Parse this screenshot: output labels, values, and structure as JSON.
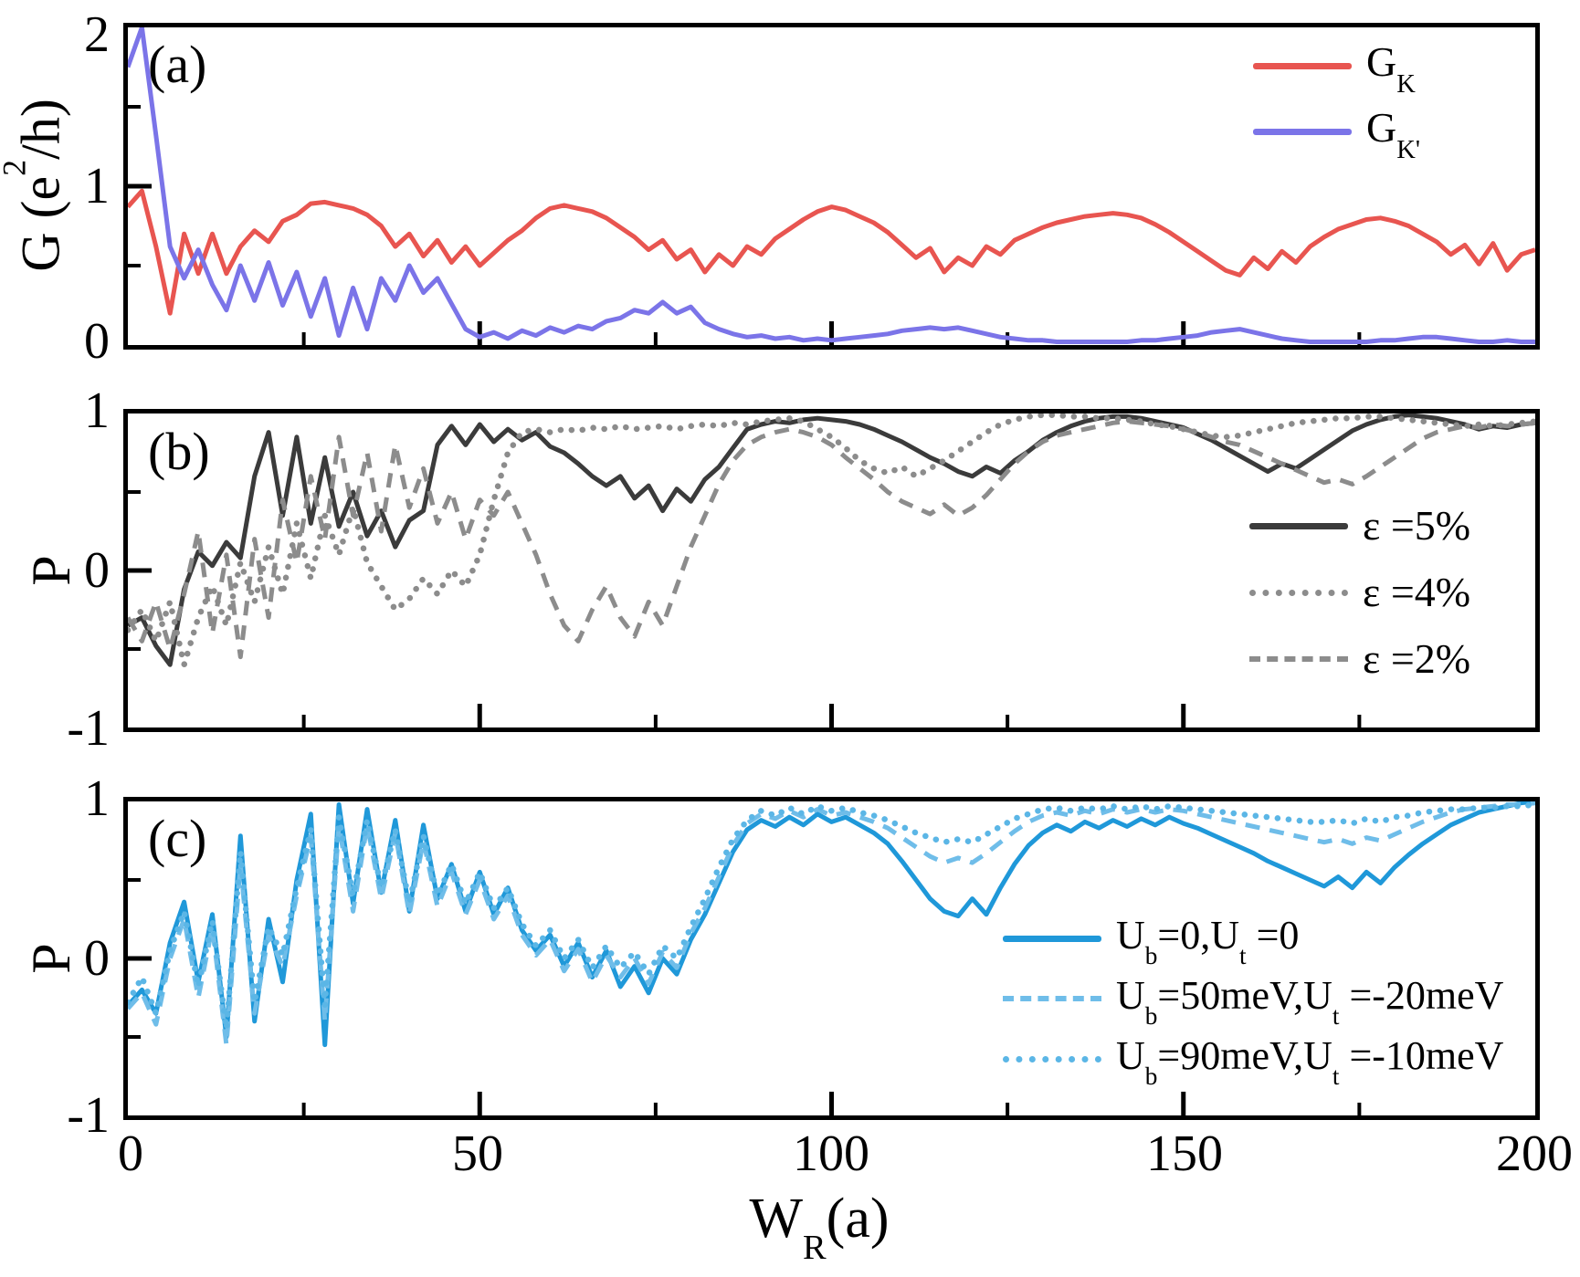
{
  "figure": {
    "panel_a": {
      "tag": "(a)",
      "ylabel": {
        "prefix": "G (e",
        "sup": "2",
        "suffix": "/h)"
      },
      "yticks": [
        "2",
        "1",
        "0"
      ],
      "legend": [
        {
          "base": "G",
          "sub": "K"
        },
        {
          "base": "G",
          "sub": "K'"
        }
      ]
    },
    "panel_b": {
      "tag": "(b)",
      "ylabel": "P",
      "yticks": [
        "1",
        "0",
        "-1"
      ],
      "legend": [
        {
          "label": "ε =5%"
        },
        {
          "label": "ε =4%"
        },
        {
          "label": "ε =2%"
        }
      ]
    },
    "panel_c": {
      "tag": "(c)",
      "ylabel": "P",
      "yticks": [
        "1",
        "0",
        "-1"
      ],
      "legend": [
        {
          "p1": "U",
          "p1sub": "b",
          "p2": "=0,U",
          "p2sub": "t",
          "p3": " =0"
        },
        {
          "p1": "U",
          "p1sub": "b",
          "p2": "=50meV,U",
          "p2sub": "t",
          "p3": " =-20meV"
        },
        {
          "p1": "U",
          "p1sub": "b",
          "p2": "=90meV,U",
          "p2sub": "t",
          "p3": " =-10meV"
        }
      ]
    },
    "xticks": [
      "0",
      "50",
      "100",
      "150",
      "200"
    ],
    "xlabel": {
      "base": "W",
      "sub": "R",
      "suffix": "(a)"
    }
  },
  "colors": {
    "gk_red": "#e85550",
    "gkp_blue": "#7b74e8",
    "eps5_dark": "#3b3b3b",
    "eps_gray": "#8c8c8c",
    "ub0_blue": "#1f98d9",
    "ub50_lightblue": "#6fbde9",
    "ub90_lightblue": "#5bb6e6",
    "frame": "#000000"
  },
  "chart_data": [
    {
      "type": "line",
      "panel": "a",
      "xlabel": "W_R(a)",
      "ylabel": "G (e^2/h)",
      "xlim": [
        0,
        200
      ],
      "ylim": [
        0,
        2
      ],
      "grid": false,
      "legend_position": "top-right",
      "x_start": 0,
      "x_step": 2,
      "x_ticks_major": [
        50,
        100,
        150
      ],
      "x_ticks_minor": [
        25,
        75,
        125,
        175
      ],
      "y_ticks_major": [
        1
      ],
      "y_ticks_minor": [
        0.5,
        1.5
      ],
      "series": [
        {
          "name": "G_K",
          "color": "#e85550",
          "style": "solid",
          "values": [
            0.87,
            0.97,
            0.62,
            0.2,
            0.7,
            0.45,
            0.7,
            0.45,
            0.62,
            0.72,
            0.65,
            0.78,
            0.82,
            0.89,
            0.9,
            0.88,
            0.86,
            0.82,
            0.75,
            0.62,
            0.7,
            0.56,
            0.66,
            0.52,
            0.62,
            0.5,
            0.58,
            0.66,
            0.72,
            0.8,
            0.86,
            0.88,
            0.86,
            0.84,
            0.8,
            0.74,
            0.68,
            0.6,
            0.66,
            0.54,
            0.6,
            0.46,
            0.57,
            0.5,
            0.62,
            0.57,
            0.67,
            0.73,
            0.79,
            0.84,
            0.87,
            0.85,
            0.81,
            0.77,
            0.71,
            0.63,
            0.55,
            0.61,
            0.46,
            0.55,
            0.5,
            0.62,
            0.57,
            0.66,
            0.7,
            0.74,
            0.77,
            0.79,
            0.81,
            0.82,
            0.83,
            0.82,
            0.8,
            0.76,
            0.71,
            0.65,
            0.59,
            0.53,
            0.47,
            0.44,
            0.55,
            0.48,
            0.59,
            0.52,
            0.62,
            0.68,
            0.73,
            0.76,
            0.79,
            0.8,
            0.78,
            0.75,
            0.7,
            0.65,
            0.57,
            0.63,
            0.51,
            0.64,
            0.47,
            0.57,
            0.6
          ]
        },
        {
          "name": "G_K'",
          "color": "#7b74e8",
          "style": "solid",
          "values": [
            1.75,
            2.0,
            1.32,
            0.62,
            0.42,
            0.6,
            0.38,
            0.22,
            0.5,
            0.28,
            0.52,
            0.25,
            0.46,
            0.18,
            0.42,
            0.06,
            0.36,
            0.1,
            0.42,
            0.28,
            0.5,
            0.33,
            0.42,
            0.26,
            0.1,
            0.05,
            0.08,
            0.04,
            0.09,
            0.06,
            0.11,
            0.08,
            0.12,
            0.1,
            0.15,
            0.17,
            0.22,
            0.2,
            0.27,
            0.2,
            0.24,
            0.14,
            0.1,
            0.07,
            0.05,
            0.06,
            0.04,
            0.05,
            0.03,
            0.04,
            0.03,
            0.04,
            0.05,
            0.06,
            0.07,
            0.09,
            0.1,
            0.11,
            0.1,
            0.11,
            0.09,
            0.07,
            0.05,
            0.04,
            0.03,
            0.03,
            0.02,
            0.02,
            0.02,
            0.02,
            0.02,
            0.02,
            0.03,
            0.03,
            0.04,
            0.05,
            0.06,
            0.08,
            0.09,
            0.1,
            0.08,
            0.06,
            0.04,
            0.03,
            0.02,
            0.02,
            0.02,
            0.02,
            0.02,
            0.03,
            0.03,
            0.04,
            0.05,
            0.05,
            0.04,
            0.03,
            0.02,
            0.02,
            0.03,
            0.02,
            0.02
          ]
        }
      ]
    },
    {
      "type": "line",
      "panel": "b",
      "xlabel": "W_R(a)",
      "ylabel": "P",
      "xlim": [
        0,
        200
      ],
      "ylim": [
        -1,
        1
      ],
      "grid": false,
      "legend_position": "right",
      "x_start": 0,
      "x_step": 2,
      "x_ticks_major": [
        50,
        100,
        150
      ],
      "x_ticks_minor": [
        25,
        75,
        125,
        175
      ],
      "y_ticks_major": [
        0
      ],
      "y_ticks_minor": [
        -0.5,
        0.5
      ],
      "series": [
        {
          "name": "ε =5%",
          "color": "#3b3b3b",
          "style": "solid",
          "values": [
            -0.35,
            -0.3,
            -0.48,
            -0.6,
            -0.12,
            0.12,
            0.03,
            0.18,
            0.08,
            0.6,
            0.88,
            0.35,
            0.85,
            0.3,
            0.72,
            0.28,
            0.5,
            0.22,
            0.38,
            0.15,
            0.32,
            0.38,
            0.8,
            0.92,
            0.8,
            0.93,
            0.82,
            0.9,
            0.83,
            0.88,
            0.79,
            0.75,
            0.68,
            0.6,
            0.54,
            0.6,
            0.46,
            0.54,
            0.38,
            0.52,
            0.44,
            0.58,
            0.66,
            0.78,
            0.9,
            0.93,
            0.95,
            0.94,
            0.96,
            0.97,
            0.96,
            0.95,
            0.93,
            0.9,
            0.86,
            0.82,
            0.77,
            0.72,
            0.68,
            0.63,
            0.6,
            0.66,
            0.62,
            0.7,
            0.76,
            0.83,
            0.88,
            0.92,
            0.95,
            0.97,
            0.98,
            0.98,
            0.97,
            0.95,
            0.93,
            0.91,
            0.87,
            0.83,
            0.78,
            0.73,
            0.68,
            0.63,
            0.68,
            0.65,
            0.71,
            0.77,
            0.83,
            0.89,
            0.93,
            0.96,
            0.98,
            0.99,
            0.98,
            0.97,
            0.95,
            0.93,
            0.9,
            0.92,
            0.91,
            0.93,
            0.94
          ]
        },
        {
          "name": "ε =4%",
          "color": "#8c8c8c",
          "style": "dotted",
          "values": [
            -0.38,
            -0.25,
            -0.45,
            -0.2,
            -0.6,
            -0.3,
            -0.1,
            -0.35,
            0.05,
            -0.2,
            0.15,
            -0.15,
            0.3,
            -0.05,
            0.35,
            0.1,
            0.4,
            0.05,
            -0.1,
            -0.25,
            -0.18,
            -0.05,
            -0.15,
            0.0,
            -0.1,
            0.1,
            0.45,
            0.75,
            0.88,
            0.9,
            0.88,
            0.9,
            0.89,
            0.91,
            0.9,
            0.92,
            0.9,
            0.91,
            0.92,
            0.9,
            0.92,
            0.93,
            0.92,
            0.94,
            0.93,
            0.95,
            0.96,
            0.97,
            0.95,
            0.9,
            0.85,
            0.78,
            0.7,
            0.65,
            0.62,
            0.66,
            0.6,
            0.65,
            0.7,
            0.76,
            0.82,
            0.88,
            0.93,
            0.96,
            0.98,
            0.99,
            0.99,
            0.98,
            0.98,
            0.97,
            0.97,
            0.96,
            0.95,
            0.93,
            0.92,
            0.9,
            0.88,
            0.86,
            0.85,
            0.86,
            0.88,
            0.9,
            0.92,
            0.94,
            0.95,
            0.96,
            0.97,
            0.97,
            0.98,
            0.98,
            0.97,
            0.96,
            0.95,
            0.94,
            0.93,
            0.92,
            0.93,
            0.92,
            0.93,
            0.94,
            0.95
          ]
        },
        {
          "name": "ε =2%",
          "color": "#8c8c8c",
          "style": "dashed",
          "values": [
            -0.3,
            -0.45,
            -0.2,
            -0.5,
            -0.15,
            0.25,
            -0.4,
            0.1,
            -0.55,
            0.2,
            -0.3,
            0.45,
            0.05,
            0.6,
            0.2,
            0.85,
            0.35,
            0.75,
            0.25,
            0.8,
            0.4,
            0.65,
            0.3,
            0.5,
            0.2,
            0.45,
            0.35,
            0.5,
            0.3,
            0.1,
            -0.15,
            -0.35,
            -0.45,
            -0.25,
            -0.1,
            -0.3,
            -0.42,
            -0.2,
            -0.35,
            -0.1,
            0.15,
            0.35,
            0.55,
            0.7,
            0.8,
            0.85,
            0.88,
            0.9,
            0.88,
            0.85,
            0.8,
            0.72,
            0.65,
            0.58,
            0.5,
            0.44,
            0.4,
            0.36,
            0.42,
            0.35,
            0.4,
            0.48,
            0.58,
            0.68,
            0.76,
            0.82,
            0.86,
            0.88,
            0.9,
            0.92,
            0.94,
            0.95,
            0.94,
            0.93,
            0.92,
            0.9,
            0.88,
            0.85,
            0.82,
            0.8,
            0.76,
            0.72,
            0.68,
            0.64,
            0.6,
            0.56,
            0.58,
            0.55,
            0.6,
            0.66,
            0.72,
            0.78,
            0.84,
            0.88,
            0.9,
            0.92,
            0.91,
            0.93,
            0.92,
            0.93,
            0.94
          ]
        }
      ]
    },
    {
      "type": "line",
      "panel": "c",
      "xlabel": "W_R(a)",
      "ylabel": "P",
      "xlim": [
        0,
        200
      ],
      "ylim": [
        -1,
        1
      ],
      "grid": false,
      "legend_position": "bottom-right",
      "x_start": 0,
      "x_step": 2,
      "x_ticks_major": [
        50,
        100,
        150
      ],
      "x_ticks_minor": [
        25,
        75,
        125,
        175
      ],
      "y_ticks_major": [
        0
      ],
      "y_ticks_minor": [
        -0.5,
        0.5
      ],
      "series": [
        {
          "name": "U_b=0,U_t=0",
          "color": "#1f98d9",
          "style": "solid",
          "values": [
            -0.3,
            -0.2,
            -0.35,
            0.1,
            0.36,
            -0.15,
            0.28,
            -0.5,
            0.78,
            -0.4,
            0.25,
            -0.15,
            0.5,
            0.92,
            -0.55,
            0.98,
            0.35,
            0.95,
            0.42,
            0.88,
            0.3,
            0.85,
            0.38,
            0.6,
            0.3,
            0.55,
            0.28,
            0.45,
            0.18,
            0.05,
            0.15,
            -0.05,
            0.1,
            -0.12,
            0.05,
            -0.18,
            -0.05,
            -0.22,
            0.0,
            -0.1,
            0.12,
            0.28,
            0.48,
            0.68,
            0.82,
            0.88,
            0.84,
            0.9,
            0.85,
            0.92,
            0.87,
            0.9,
            0.85,
            0.8,
            0.73,
            0.62,
            0.5,
            0.38,
            0.3,
            0.27,
            0.38,
            0.28,
            0.45,
            0.6,
            0.72,
            0.8,
            0.85,
            0.81,
            0.87,
            0.83,
            0.88,
            0.84,
            0.89,
            0.85,
            0.9,
            0.86,
            0.83,
            0.79,
            0.75,
            0.71,
            0.67,
            0.62,
            0.58,
            0.54,
            0.5,
            0.46,
            0.52,
            0.45,
            0.55,
            0.48,
            0.58,
            0.66,
            0.73,
            0.79,
            0.85,
            0.89,
            0.93,
            0.95,
            0.97,
            0.99,
            1.0
          ]
        },
        {
          "name": "U_b=50meV,U_t=-20meV",
          "color": "#6fbde9",
          "style": "dashed",
          "values": [
            -0.32,
            -0.22,
            -0.42,
            0.0,
            0.25,
            -0.25,
            0.2,
            -0.55,
            0.6,
            -0.35,
            0.15,
            -0.05,
            0.4,
            0.78,
            -0.4,
            0.85,
            0.3,
            0.85,
            0.38,
            0.8,
            0.28,
            0.75,
            0.33,
            0.55,
            0.28,
            0.5,
            0.25,
            0.4,
            0.15,
            0.02,
            0.12,
            -0.08,
            0.06,
            -0.15,
            0.02,
            -0.12,
            0.0,
            -0.16,
            0.04,
            -0.06,
            0.16,
            0.32,
            0.52,
            0.72,
            0.86,
            0.92,
            0.89,
            0.94,
            0.9,
            0.95,
            0.91,
            0.93,
            0.9,
            0.87,
            0.83,
            0.77,
            0.71,
            0.65,
            0.61,
            0.64,
            0.61,
            0.67,
            0.74,
            0.81,
            0.87,
            0.91,
            0.93,
            0.91,
            0.94,
            0.92,
            0.95,
            0.93,
            0.95,
            0.93,
            0.95,
            0.94,
            0.92,
            0.9,
            0.88,
            0.86,
            0.84,
            0.82,
            0.8,
            0.78,
            0.76,
            0.74,
            0.76,
            0.73,
            0.77,
            0.75,
            0.79,
            0.83,
            0.87,
            0.9,
            0.93,
            0.95,
            0.96,
            0.97,
            0.98,
            0.98,
            0.99
          ]
        },
        {
          "name": "U_b=90meV,U_t=-10meV",
          "color": "#5bb6e6",
          "style": "dotted",
          "values": [
            -0.28,
            -0.12,
            -0.35,
            0.05,
            0.3,
            -0.18,
            0.24,
            -0.45,
            0.68,
            -0.28,
            0.2,
            0.02,
            0.45,
            0.82,
            -0.3,
            0.9,
            0.4,
            0.88,
            0.45,
            0.82,
            0.35,
            0.78,
            0.4,
            0.6,
            0.35,
            0.55,
            0.32,
            0.45,
            0.22,
            0.08,
            0.18,
            0.0,
            0.12,
            -0.06,
            0.08,
            -0.06,
            0.04,
            -0.1,
            0.08,
            0.0,
            0.2,
            0.38,
            0.58,
            0.76,
            0.88,
            0.94,
            0.91,
            0.96,
            0.92,
            0.97,
            0.94,
            0.96,
            0.93,
            0.91,
            0.88,
            0.84,
            0.8,
            0.77,
            0.74,
            0.76,
            0.74,
            0.79,
            0.84,
            0.89,
            0.92,
            0.95,
            0.96,
            0.94,
            0.96,
            0.95,
            0.97,
            0.95,
            0.97,
            0.95,
            0.97,
            0.96,
            0.95,
            0.94,
            0.93,
            0.92,
            0.91,
            0.9,
            0.89,
            0.88,
            0.87,
            0.87,
            0.88,
            0.86,
            0.89,
            0.87,
            0.9,
            0.91,
            0.93,
            0.94,
            0.95,
            0.95,
            0.96,
            0.96,
            0.97,
            0.97,
            0.98
          ]
        }
      ]
    }
  ]
}
